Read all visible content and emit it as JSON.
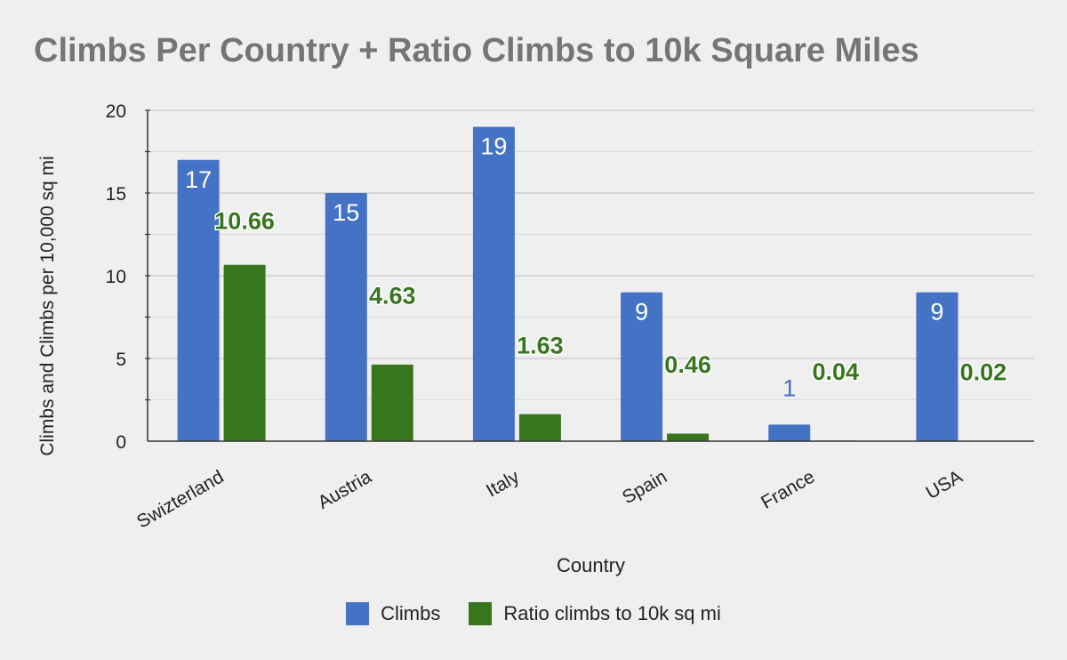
{
  "chart_data": {
    "type": "bar",
    "title": "Climbs Per Country + Ratio Climbs to 10k Square Miles",
    "xlabel": "Country",
    "ylabel": "Climbs and Climbs per 10,000 sq mi",
    "categories": [
      "Switzerland",
      "Austria",
      "Italy",
      "Spain",
      "France",
      "USA"
    ],
    "category_labels": [
      "Swizterland",
      "Austria",
      "Italy",
      "Spain",
      "France",
      "USA"
    ],
    "series": [
      {
        "name": "Climbs",
        "color": "#4472c4",
        "label_color": "#ffffff",
        "values": [
          17,
          15,
          19,
          9,
          1,
          9
        ],
        "labels": [
          "17",
          "15",
          "19",
          "9",
          "1",
          "9"
        ]
      },
      {
        "name": "Ratio climbs to 10k sq mi",
        "color": "#38761d",
        "label_color": "#38761d",
        "values": [
          10.66,
          4.63,
          1.63,
          0.46,
          0.04,
          0.02
        ],
        "labels": [
          "10.66",
          "4.63",
          "1.63",
          "0.46",
          "0.04",
          "0.02"
        ]
      }
    ],
    "ylim": [
      0,
      20
    ],
    "yticks": [
      0,
      5,
      10,
      15,
      20
    ],
    "grid": true,
    "legend_position": "bottom"
  }
}
